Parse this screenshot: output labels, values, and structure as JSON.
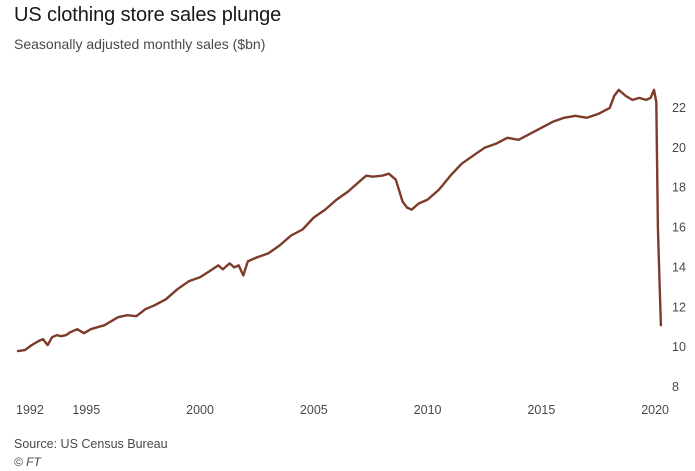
{
  "chart_data": {
    "type": "line",
    "title": "US clothing store sales plunge",
    "subtitle": "Seasonally adjusted monthly sales ($bn)",
    "xlabel": "",
    "ylabel": "",
    "x_ticks": [
      "1992",
      "1995",
      "2000",
      "2005",
      "2010",
      "2015",
      "2020"
    ],
    "y_ticks": [
      "8",
      "10",
      "12",
      "14",
      "16",
      "18",
      "20",
      "22"
    ],
    "xlim": [
      1992,
      2020.3
    ],
    "ylim": [
      8,
      24
    ],
    "grid": false,
    "series": [
      {
        "name": "US clothing store sales",
        "color": "#7d3b2a",
        "x": [
          1992.0,
          1992.3,
          1992.6,
          1992.9,
          1993.1,
          1993.3,
          1993.5,
          1993.7,
          1993.9,
          1994.1,
          1994.3,
          1994.6,
          1994.9,
          1995.2,
          1995.5,
          1995.8,
          1996.1,
          1996.4,
          1996.8,
          1997.2,
          1997.6,
          1998.0,
          1998.5,
          1999.0,
          1999.5,
          2000.0,
          2000.4,
          2000.8,
          2001.0,
          2001.3,
          2001.5,
          2001.7,
          2001.9,
          2002.1,
          2002.5,
          2003.0,
          2003.5,
          2004.0,
          2004.5,
          2005.0,
          2005.5,
          2006.0,
          2006.5,
          2007.0,
          2007.3,
          2007.6,
          2008.0,
          2008.3,
          2008.6,
          2008.9,
          2009.1,
          2009.3,
          2009.6,
          2010.0,
          2010.5,
          2011.0,
          2011.5,
          2012.0,
          2012.5,
          2013.0,
          2013.5,
          2014.0,
          2014.5,
          2015.0,
          2015.5,
          2016.0,
          2016.5,
          2017.0,
          2017.5,
          2018.0,
          2018.2,
          2018.4,
          2018.7,
          2019.0,
          2019.3,
          2019.6,
          2019.8,
          2019.95,
          2020.05,
          2020.12,
          2020.2,
          2020.25
        ],
        "values": [
          9.8,
          9.85,
          10.1,
          10.3,
          10.4,
          10.1,
          10.5,
          10.6,
          10.55,
          10.6,
          10.75,
          10.9,
          10.7,
          10.9,
          11.0,
          11.1,
          11.3,
          11.5,
          11.6,
          11.55,
          11.9,
          12.1,
          12.4,
          12.9,
          13.3,
          13.5,
          13.8,
          14.1,
          13.9,
          14.2,
          14.0,
          14.1,
          13.6,
          14.3,
          14.5,
          14.7,
          15.1,
          15.6,
          15.9,
          16.5,
          16.9,
          17.4,
          17.8,
          18.3,
          18.6,
          18.55,
          18.6,
          18.7,
          18.4,
          17.3,
          17.0,
          16.9,
          17.2,
          17.4,
          17.9,
          18.6,
          19.2,
          19.6,
          20.0,
          20.2,
          20.5,
          20.4,
          20.7,
          21.0,
          21.3,
          21.5,
          21.6,
          21.5,
          21.7,
          22.0,
          22.6,
          22.9,
          22.6,
          22.4,
          22.5,
          22.4,
          22.5,
          22.9,
          22.3,
          16.0,
          13.0,
          11.1
        ]
      }
    ]
  },
  "footer": {
    "source": "Source: US Census Bureau",
    "credit": "© FT"
  }
}
